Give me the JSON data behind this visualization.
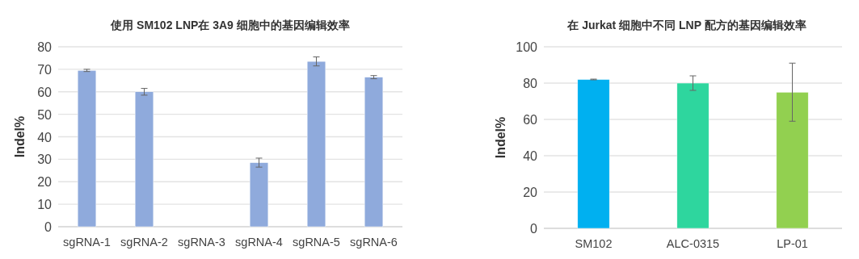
{
  "chart_data": [
    {
      "type": "bar",
      "title": "使用 SM102 LNP在 3A9 细胞中的基因编辑效率",
      "ylabel": "Indel%",
      "categories": [
        "sgRNA-1",
        "sgRNA-2",
        "sgRNA-3",
        "sgRNA-4",
        "sgRNA-5",
        "sgRNA-6"
      ],
      "values": [
        69.5,
        60,
        0,
        28.5,
        73.5,
        66.5
      ],
      "errors": [
        0.5,
        1.5,
        null,
        2,
        2,
        0.7
      ],
      "color": "#8faadc",
      "ylim": [
        0,
        80
      ],
      "yticks": [
        0,
        10,
        20,
        30,
        40,
        50,
        60,
        70,
        80
      ],
      "grid": "y"
    },
    {
      "type": "bar",
      "title": "在 Jurkat 细胞中不同 LNP 配方的基因编辑效率",
      "ylabel": "Indel%",
      "categories": [
        "SM102",
        "ALC-0315",
        "LP-01"
      ],
      "values": [
        82,
        80,
        75
      ],
      "errors": [
        0.2,
        4,
        [
          59,
          91
        ]
      ],
      "colors": [
        "#00b0f0",
        "#2ed69e",
        "#92d050"
      ],
      "ylim": [
        0,
        100
      ],
      "yticks": [
        0,
        20,
        40,
        60,
        80,
        100
      ],
      "grid": "y"
    }
  ]
}
